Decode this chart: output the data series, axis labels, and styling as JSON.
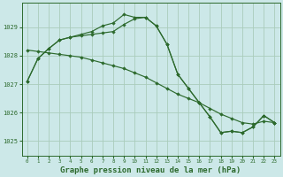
{
  "background_color": "#cce8e8",
  "grid_color": "#aaccbb",
  "line_color": "#2d6a2d",
  "marker_color": "#2d6a2d",
  "xlabel": "Graphe pression niveau de la mer (hPa)",
  "xlabel_fontsize": 6.5,
  "xlim": [
    -0.5,
    23.5
  ],
  "ylim": [
    1024.5,
    1029.85
  ],
  "yticks": [
    1025,
    1026,
    1027,
    1028,
    1029
  ],
  "xticks": [
    0,
    1,
    2,
    3,
    4,
    5,
    6,
    7,
    8,
    9,
    10,
    11,
    12,
    13,
    14,
    15,
    16,
    17,
    18,
    19,
    20,
    21,
    22,
    23
  ],
  "series": [
    {
      "x": [
        0,
        1,
        2,
        3,
        4,
        5,
        6,
        7,
        8,
        9,
        10,
        11,
        12,
        13,
        14,
        15,
        16,
        17,
        18,
        19,
        20,
        21,
        22,
        23
      ],
      "y": [
        1027.1,
        1027.9,
        1028.25,
        1028.55,
        1028.65,
        1028.75,
        1028.85,
        1029.05,
        1029.15,
        1029.45,
        1029.35,
        1029.35,
        1029.05,
        1028.4,
        1027.35,
        1026.85,
        1026.35,
        1025.85,
        1025.3,
        1025.35,
        1025.3,
        1025.5,
        1025.9,
        1025.65
      ]
    },
    {
      "x": [
        0,
        1,
        2,
        3,
        4,
        5,
        6,
        7,
        8,
        9,
        10,
        11,
        12,
        13,
        14,
        15,
        16,
        17,
        18,
        19,
        20,
        21,
        22,
        23
      ],
      "y": [
        1027.1,
        1027.9,
        1028.25,
        1028.55,
        1028.65,
        1028.7,
        1028.75,
        1028.8,
        1028.85,
        1029.1,
        1029.3,
        1029.35,
        1029.05,
        1028.4,
        1027.35,
        1026.85,
        1026.35,
        1025.85,
        1025.3,
        1025.35,
        1025.3,
        1025.5,
        1025.9,
        1025.65
      ]
    },
    {
      "x": [
        0,
        1,
        2,
        3,
        4,
        5,
        6,
        7,
        8,
        9,
        10,
        11,
        12,
        13,
        14,
        15,
        16,
        17,
        18,
        19,
        20,
        21,
        22,
        23
      ],
      "y": [
        1028.2,
        1028.15,
        1028.1,
        1028.05,
        1028.0,
        1027.95,
        1027.85,
        1027.75,
        1027.65,
        1027.55,
        1027.4,
        1027.25,
        1027.05,
        1026.85,
        1026.65,
        1026.5,
        1026.35,
        1026.15,
        1025.95,
        1025.8,
        1025.65,
        1025.6,
        1025.7,
        1025.65
      ]
    }
  ]
}
